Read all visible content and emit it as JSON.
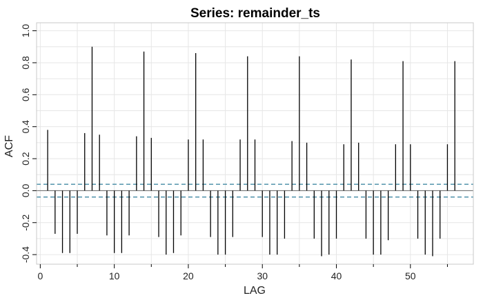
{
  "chart_data": {
    "type": "bar",
    "title": "Series:  remainder_ts",
    "xlabel": "LAG",
    "ylabel": "ACF",
    "xlim": [
      -0.5,
      58.5
    ],
    "ylim": [
      -0.46,
      1.05
    ],
    "xticks": [
      0,
      10,
      20,
      30,
      40,
      50
    ],
    "xtick_labels": [
      "0",
      "10",
      "20",
      "30",
      "40",
      "50"
    ],
    "xminor_ticks": [
      5,
      15,
      25,
      35,
      45,
      55
    ],
    "yticks": [
      -0.4,
      -0.2,
      0.0,
      0.2,
      0.4,
      0.6,
      0.8,
      1.0
    ],
    "ytick_labels": [
      "-0.4",
      "-0.2",
      "0.0",
      "0.2",
      "0.4",
      "0.6",
      "0.8",
      "1.0"
    ],
    "grid": true,
    "confidence_band": 0.04,
    "colors": {
      "bars": "#000000",
      "zero_line": "#666666",
      "confidence": "#2e7d9a",
      "grid": "#e6e6e6",
      "frame": "#c8c8c8"
    },
    "x": [
      1,
      2,
      3,
      4,
      5,
      6,
      7,
      8,
      9,
      10,
      11,
      12,
      13,
      14,
      15,
      16,
      17,
      18,
      19,
      20,
      21,
      22,
      23,
      24,
      25,
      26,
      27,
      28,
      29,
      30,
      31,
      32,
      33,
      34,
      35,
      36,
      37,
      38,
      39,
      40,
      41,
      42,
      43,
      44,
      45,
      46,
      47,
      48,
      49,
      50,
      51,
      52,
      53,
      54,
      55,
      56
    ],
    "values": [
      0.38,
      -0.27,
      -0.39,
      -0.39,
      -0.27,
      0.36,
      0.9,
      0.35,
      -0.28,
      -0.39,
      -0.39,
      -0.28,
      0.34,
      0.87,
      0.33,
      -0.29,
      -0.4,
      -0.39,
      -0.28,
      0.32,
      0.86,
      0.32,
      -0.29,
      -0.4,
      -0.4,
      -0.29,
      0.32,
      0.84,
      0.32,
      -0.29,
      -0.4,
      -0.4,
      -0.3,
      0.31,
      0.84,
      0.3,
      -0.3,
      -0.41,
      -0.4,
      -0.3,
      0.29,
      0.82,
      0.3,
      -0.3,
      -0.4,
      -0.4,
      -0.31,
      0.29,
      0.81,
      0.29,
      -0.3,
      -0.4,
      -0.41,
      -0.3,
      0.29,
      0.81
    ]
  }
}
